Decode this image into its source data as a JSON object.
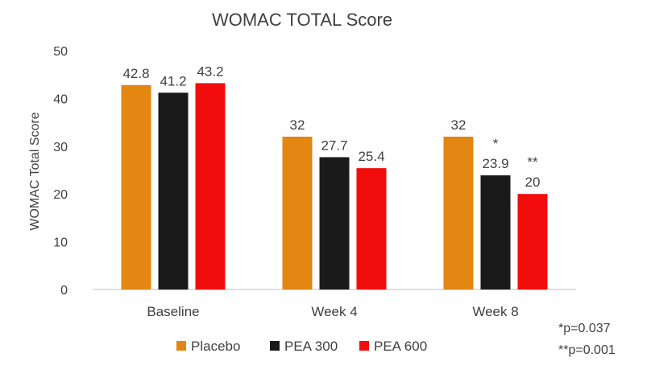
{
  "chart_data": {
    "type": "bar",
    "title": "WOMAC TOTAL Score",
    "xlabel": "",
    "ylabel": "WOMAC Total Score",
    "ylim": [
      0,
      50
    ],
    "yticks": [
      0,
      10,
      20,
      30,
      40,
      50
    ],
    "grid": false,
    "legend": "bottom",
    "categories": [
      "Baseline",
      "Week 4",
      "Week 8"
    ],
    "series": [
      {
        "name": "Placebo",
        "color": "#E38612",
        "values": [
          42.8,
          32,
          32
        ],
        "labels": [
          "42.8",
          "32",
          "32"
        ],
        "annotations": [
          "",
          "",
          ""
        ]
      },
      {
        "name": "PEA 300",
        "color": "#1A1A1A",
        "values": [
          41.2,
          27.7,
          23.9
        ],
        "labels": [
          "41.2",
          "27.7",
          "23.9"
        ],
        "annotations": [
          "",
          "",
          "*"
        ]
      },
      {
        "name": "PEA 600",
        "color": "#F20D0D",
        "values": [
          43.2,
          25.4,
          20
        ],
        "labels": [
          "43.2",
          "25.4",
          "20"
        ],
        "annotations": [
          "",
          "",
          "**"
        ]
      }
    ],
    "footnotes": [
      "*p=0.037",
      "**p=0.001"
    ]
  }
}
